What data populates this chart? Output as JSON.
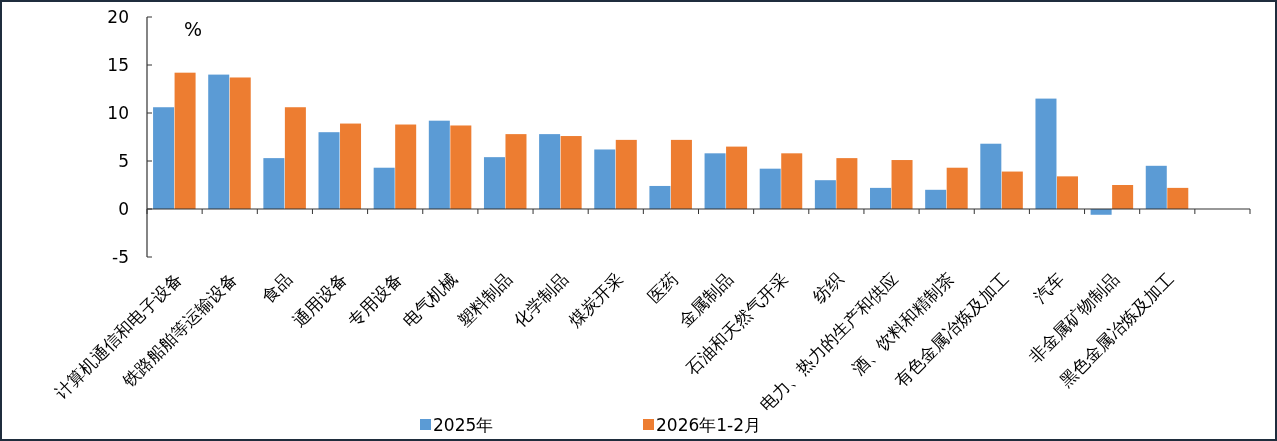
{
  "chart_data": {
    "type": "bar",
    "ylabel": "%",
    "categories": [
      "计算机通信和电子设备",
      "铁路船舶等运输设备",
      "食品",
      "通用设备",
      "专用设备",
      "电气机械",
      "塑料制品",
      "化学制品",
      "煤炭开采",
      "医药",
      "金属制品",
      "石油和天然气开采",
      "纺织",
      "电力、热力的生产和供应",
      "酒、饮料和精制茶",
      "有色金属冶炼及加工",
      "汽车",
      "非金属矿物制品",
      "黑色金属冶炼及加工",
      null
    ],
    "series": [
      {
        "name": "2025年",
        "color": "#5b9bd5",
        "values": [
          10.6,
          14.0,
          5.3,
          8.0,
          4.3,
          9.2,
          5.4,
          7.8,
          6.2,
          2.4,
          5.8,
          4.2,
          3.0,
          2.2,
          2.0,
          6.8,
          11.5,
          -0.6,
          4.5,
          null
        ]
      },
      {
        "name": "2026年1-2月",
        "color": "#ed7d31",
        "values": [
          14.2,
          13.7,
          10.6,
          8.9,
          8.8,
          8.7,
          7.8,
          7.6,
          7.2,
          7.2,
          6.5,
          5.8,
          5.3,
          5.1,
          4.3,
          3.9,
          3.4,
          2.5,
          2.2,
          null
        ]
      }
    ],
    "ylim": [
      -5,
      20
    ],
    "yticks": [
      -5,
      0,
      5,
      10,
      15,
      20
    ],
    "legend": "bottom"
  }
}
